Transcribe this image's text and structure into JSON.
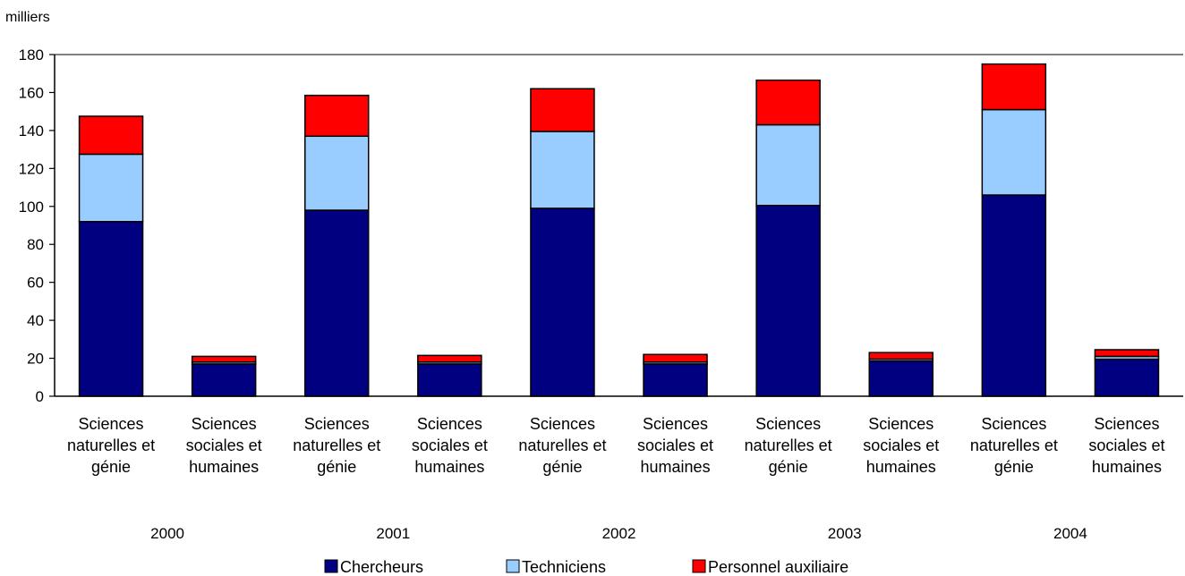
{
  "chart_data": {
    "type": "bar",
    "stacked": true,
    "title": "",
    "unit_label": "milliers",
    "xlabel": "",
    "ylabel": "",
    "ylim": [
      0,
      180
    ],
    "yticks": [
      0,
      20,
      40,
      60,
      80,
      100,
      120,
      140,
      160,
      180
    ],
    "grid": false,
    "legend_position": "bottom",
    "categories": [
      "Sciences naturelles et génie",
      "Sciences sociales et humaines",
      "Sciences naturelles et génie",
      "Sciences sociales et humaines",
      "Sciences naturelles et génie",
      "Sciences sociales et humaines",
      "Sciences naturelles et génie",
      "Sciences sociales et humaines",
      "Sciences naturelles et génie",
      "Sciences sociales et humaines"
    ],
    "category_lines": [
      [
        "Sciences",
        "naturelles et",
        "génie"
      ],
      [
        "Sciences",
        "sociales et",
        "humaines"
      ],
      [
        "Sciences",
        "naturelles et",
        "génie"
      ],
      [
        "Sciences",
        "sociales et",
        "humaines"
      ],
      [
        "Sciences",
        "naturelles et",
        "génie"
      ],
      [
        "Sciences",
        "sociales et",
        "humaines"
      ],
      [
        "Sciences",
        "naturelles et",
        "génie"
      ],
      [
        "Sciences",
        "sociales et",
        "humaines"
      ],
      [
        "Sciences",
        "naturelles et",
        "génie"
      ],
      [
        "Sciences",
        "sociales et",
        "humaines"
      ]
    ],
    "groups": [
      "2000",
      "2001",
      "2002",
      "2003",
      "2004"
    ],
    "series": [
      {
        "name": "Chercheurs",
        "color": "#000080",
        "values": [
          92,
          17,
          98,
          17,
          99,
          17,
          100.5,
          18.5,
          106,
          19.5
        ]
      },
      {
        "name": "Techniciens",
        "color": "#99CCFF",
        "values": [
          35.5,
          1,
          39,
          1,
          40.5,
          1,
          42.5,
          1,
          45,
          1.5
        ]
      },
      {
        "name": "Personnel auxiliaire",
        "color": "#FF0000",
        "values": [
          20,
          3,
          21.5,
          3.5,
          22.5,
          4,
          23.5,
          3.5,
          24,
          3.5
        ]
      }
    ]
  }
}
